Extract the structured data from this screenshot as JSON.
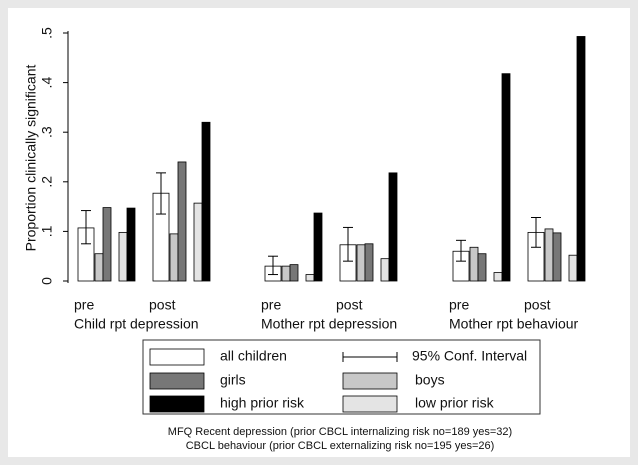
{
  "chart_data": {
    "type": "bar",
    "y_label": "Proportion clinically significant",
    "ylim": [
      0,
      0.5
    ],
    "yticks": [
      0,
      {
        "value": 0.1,
        "label": ".1"
      },
      {
        "value": 0.2,
        "label": ".2"
      },
      {
        "value": 0.3,
        "label": ".3"
      },
      {
        "value": 0.4,
        "label": ".4"
      },
      {
        "value": 0.5,
        "label": ".5"
      }
    ],
    "categories": [
      "pre",
      "post",
      "pre",
      "post",
      "pre",
      "post"
    ],
    "groups": [
      "Child rpt depression",
      "Mother rpt depression",
      "Mother rpt behaviour"
    ],
    "ci_label": "95% Conf. Interval",
    "series": [
      {
        "name": "all children",
        "color": "#ffffff",
        "values": [
          0.107,
          0.177,
          0.03,
          0.073,
          0.06,
          0.098
        ],
        "ci_low": [
          0.075,
          0.135,
          0.013,
          0.04,
          0.04,
          0.068
        ],
        "ci_high": [
          0.142,
          0.218,
          0.05,
          0.108,
          0.082,
          0.128
        ]
      },
      {
        "name": "boys",
        "color": "#c8c8c8",
        "values": [
          0.055,
          0.095,
          0.03,
          0.073,
          0.068,
          0.105
        ]
      },
      {
        "name": "girls",
        "color": "#777777",
        "values": [
          0.148,
          0.24,
          0.033,
          0.075,
          0.055,
          0.097
        ]
      },
      {
        "name": "low prior risk",
        "color": "#e4e4e4",
        "values": [
          0.098,
          0.157,
          0.013,
          0.045,
          0.017,
          0.052
        ]
      },
      {
        "name": "high prior risk",
        "color": "#000000",
        "values": [
          0.147,
          0.32,
          0.137,
          0.218,
          0.418,
          0.493
        ]
      }
    ],
    "notes": [
      "MFQ Recent depression (prior CBCL internalizing risk no=189 yes=32)",
      "CBCL behaviour (prior CBCL externalizing risk no=195 yes=26)"
    ]
  }
}
